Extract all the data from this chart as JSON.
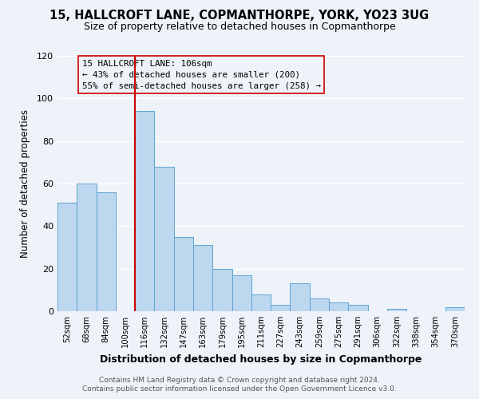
{
  "title": "15, HALLCROFT LANE, COPMANTHORPE, YORK, YO23 3UG",
  "subtitle": "Size of property relative to detached houses in Copmanthorpe",
  "xlabel": "Distribution of detached houses by size in Copmanthorpe",
  "ylabel": "Number of detached properties",
  "bar_color": "#bdd7ee",
  "bar_edge_color": "#5ba3d0",
  "categories": [
    "52sqm",
    "68sqm",
    "84sqm",
    "100sqm",
    "116sqm",
    "132sqm",
    "147sqm",
    "163sqm",
    "179sqm",
    "195sqm",
    "211sqm",
    "227sqm",
    "243sqm",
    "259sqm",
    "275sqm",
    "291sqm",
    "306sqm",
    "322sqm",
    "338sqm",
    "354sqm",
    "370sqm"
  ],
  "values": [
    51,
    60,
    56,
    0,
    94,
    68,
    35,
    31,
    20,
    17,
    8,
    3,
    13,
    6,
    4,
    3,
    0,
    1,
    0,
    0,
    2
  ],
  "vline_x": 3.5,
  "annotation_title": "15 HALLCROFT LANE: 106sqm",
  "annotation_line1": "← 43% of detached houses are smaller (200)",
  "annotation_line2": "55% of semi-detached houses are larger (258) →",
  "ylim": [
    0,
    120
  ],
  "yticks": [
    0,
    20,
    40,
    60,
    80,
    100,
    120
  ],
  "footnote1": "Contains HM Land Registry data © Crown copyright and database right 2024.",
  "footnote2": "Contains public sector information licensed under the Open Government Licence v3.0.",
  "background_color": "#eef2f9",
  "grid_color": "#ffffff",
  "vline_color": "#cc0000",
  "title_fontsize": 10.5,
  "subtitle_fontsize": 9
}
